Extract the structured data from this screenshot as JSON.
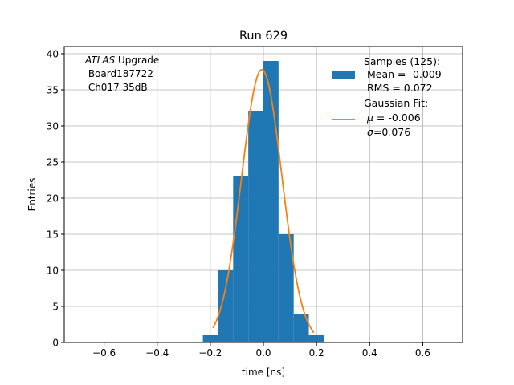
{
  "chart_data": {
    "type": "bar",
    "title": "Run 629",
    "xlabel": "time [ns]",
    "ylabel": "Entries",
    "xlim": [
      -0.75,
      0.75
    ],
    "ylim": [
      0,
      41
    ],
    "xticks": [
      -0.6,
      -0.4,
      -0.2,
      0.0,
      0.2,
      0.4,
      0.6
    ],
    "xtick_labels": [
      "−0.6",
      "−0.4",
      "−0.2",
      "0.0",
      "0.2",
      "0.4",
      "0.6"
    ],
    "yticks": [
      0,
      5,
      10,
      15,
      20,
      25,
      30,
      35,
      40
    ],
    "ytick_labels": [
      "0",
      "5",
      "10",
      "15",
      "20",
      "25",
      "30",
      "35",
      "40"
    ],
    "grid": true,
    "histogram": {
      "name": "Samples (125):",
      "color": "#1f77b4",
      "bin_edges": [
        -0.228,
        -0.171,
        -0.114,
        -0.057,
        0.0,
        0.057,
        0.114,
        0.171,
        0.228
      ],
      "counts": [
        1,
        10,
        23,
        32,
        39,
        15,
        4,
        1
      ]
    },
    "fit": {
      "name": "Gaussian Fit:",
      "color": "#ff7f0e",
      "mu": -0.006,
      "sigma": 0.076,
      "amplitude": 37.8,
      "x_range": [
        -0.19,
        0.19
      ]
    },
    "legend": {
      "placement": "top-right",
      "samples_label": "Samples (125):",
      "samples_mean": " Mean = -0.009",
      "samples_rms": " RMS = 0.072",
      "fit_label": "Gaussian Fit:",
      "fit_mu_symbol": "μ",
      "fit_mu_value": " = -0.006",
      "fit_sigma_symbol": "σ",
      "fit_sigma_value": "=0.076"
    },
    "annotation": {
      "experiment": "ATLAS",
      "suffix": " Upgrade",
      "board": " Board187722",
      "channel": " Ch017 35dB"
    }
  }
}
